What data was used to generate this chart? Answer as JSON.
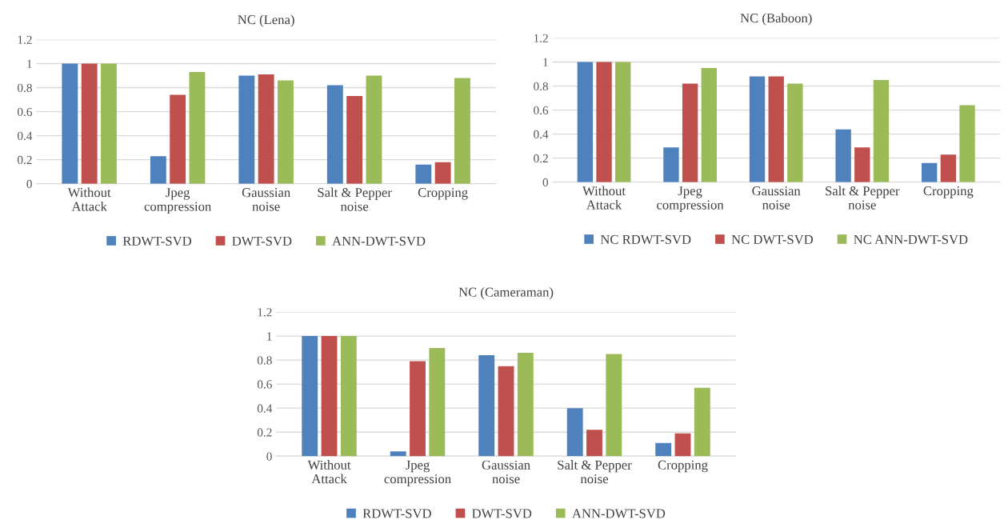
{
  "chart_data": [
    {
      "type": "bar",
      "title": "NC (Lena)",
      "categories": [
        "Without\nAttack",
        "Jpeg\ncompression",
        "Gaussian\nnoise",
        "Salt & Pepper\nnoise",
        "Cropping"
      ],
      "ylim": [
        0,
        1.2
      ],
      "yticks": [
        0,
        0.2,
        0.4,
        0.6,
        0.8,
        1,
        1.2
      ],
      "grid": "y",
      "legend": "bottom",
      "series": [
        {
          "name": "RDWT-SVD",
          "color": "#4f81bd",
          "values": [
            1,
            0.23,
            0.9,
            0.82,
            0.16
          ]
        },
        {
          "name": "DWT-SVD",
          "color": "#c0504d",
          "values": [
            1,
            0.74,
            0.91,
            0.73,
            0.18
          ]
        },
        {
          "name": "ANN-DWT-SVD",
          "color": "#9bbb59",
          "values": [
            1,
            0.93,
            0.86,
            0.9,
            0.88
          ]
        }
      ]
    },
    {
      "type": "bar",
      "title": "NC (Baboon)",
      "categories": [
        "Without\nAttack",
        "Jpeg\ncompression",
        "Gaussian\nnoise",
        "Salt & Pepper\nnoise",
        "Cropping"
      ],
      "ylim": [
        0,
        1.2
      ],
      "yticks": [
        0,
        0.2,
        0.4,
        0.6,
        0.8,
        1,
        1.2
      ],
      "grid": "y",
      "legend": "bottom",
      "series": [
        {
          "name": "NC RDWT-SVD",
          "color": "#4f81bd",
          "values": [
            1,
            0.29,
            0.88,
            0.44,
            0.16
          ]
        },
        {
          "name": "NC DWT-SVD",
          "color": "#c0504d",
          "values": [
            1,
            0.82,
            0.88,
            0.29,
            0.23
          ]
        },
        {
          "name": "NC ANN-DWT-SVD",
          "color": "#9bbb59",
          "values": [
            1,
            0.95,
            0.82,
            0.85,
            0.64
          ]
        }
      ]
    },
    {
      "type": "bar",
      "title": "NC (Cameraman)",
      "categories": [
        "Without\nAttack",
        "Jpeg\ncompression",
        "Gaussian\nnoise",
        "Salt & Pepper\nnoise",
        "Cropping"
      ],
      "ylim": [
        0,
        1.2
      ],
      "yticks": [
        0,
        0.2,
        0.4,
        0.6,
        0.8,
        1,
        1.2
      ],
      "grid": "y",
      "legend": "bottom",
      "series": [
        {
          "name": "RDWT-SVD",
          "color": "#4f81bd",
          "values": [
            1,
            0.04,
            0.84,
            0.4,
            0.11
          ]
        },
        {
          "name": "DWT-SVD",
          "color": "#c0504d",
          "values": [
            1,
            0.79,
            0.75,
            0.22,
            0.19
          ]
        },
        {
          "name": "ANN-DWT-SVD",
          "color": "#9bbb59",
          "values": [
            1,
            0.9,
            0.86,
            0.85,
            0.57
          ]
        }
      ]
    }
  ]
}
